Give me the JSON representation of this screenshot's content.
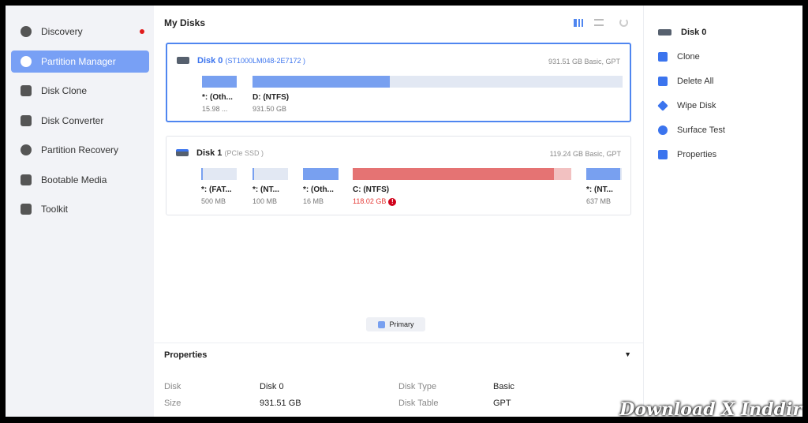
{
  "sidebar": {
    "items": [
      {
        "label": "Discovery",
        "icon": "compass-icon",
        "badge": true
      },
      {
        "label": "Partition Manager",
        "icon": "pie-chart-icon",
        "active": true
      },
      {
        "label": "Disk Clone",
        "icon": "disk-clone-icon"
      },
      {
        "label": "Disk Converter",
        "icon": "disk-converter-icon"
      },
      {
        "label": "Partition Recovery",
        "icon": "partition-recovery-icon"
      },
      {
        "label": "Bootable Media",
        "icon": "bootable-media-icon"
      },
      {
        "label": "Toolkit",
        "icon": "toolbox-icon"
      }
    ]
  },
  "main": {
    "title": "My Disks",
    "disks": [
      {
        "name": "Disk 0",
        "model": "(ST1000LM048-2E7172 )",
        "info": "931.51 GB Basic, GPT",
        "selected": true,
        "partitions": [
          {
            "label": "*: (Oth...",
            "size": "15.98 ...",
            "used": 1.0
          },
          {
            "label": "D: (NTFS)",
            "size": "931.50 GB",
            "used": 0.37
          }
        ]
      },
      {
        "name": "Disk 1",
        "model": "(PCIe SSD )",
        "info": "119.24 GB Basic, GPT",
        "partitions": [
          {
            "label": "*: (FAT...",
            "size": "500 MB",
            "used": 0.05
          },
          {
            "label": "*: (NT...",
            "size": "100 MB",
            "used": 0.05
          },
          {
            "label": "*: (Oth...",
            "size": "16 MB",
            "used": 1.0
          },
          {
            "label": "C: (NTFS)",
            "size": "118.02 GB",
            "used": 0.92,
            "warning": true
          },
          {
            "label": "*: (NT...",
            "size": "637 MB",
            "used": 0.95
          }
        ]
      }
    ],
    "legend": "Primary",
    "properties": {
      "title": "Properties",
      "rows": [
        {
          "k1": "Disk",
          "v1": "Disk 0",
          "k2": "Disk Type",
          "v2": "Basic"
        },
        {
          "k1": "Size",
          "v1": "931.51 GB",
          "k2": "Disk Table",
          "v2": "GPT"
        }
      ]
    }
  },
  "right_panel": {
    "header": "Disk 0",
    "actions": [
      "Clone",
      "Delete All",
      "Wipe Disk",
      "Surface Test",
      "Properties"
    ]
  },
  "watermark": "Download X Inddir",
  "colors": {
    "accent": "#3b74ee",
    "primary_bar": "#78a0f0",
    "warning_bar": "#e57373"
  }
}
